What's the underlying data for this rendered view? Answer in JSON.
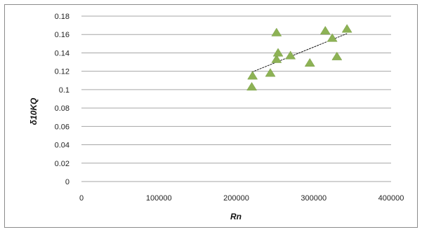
{
  "chart_data": {
    "type": "scatter",
    "title": "",
    "xlabel": "Rn",
    "ylabel": "δ10KQ",
    "xlim": [
      0,
      400000
    ],
    "ylim": [
      0,
      0.18
    ],
    "x_ticks": [
      0,
      100000,
      200000,
      300000,
      400000
    ],
    "y_ticks": [
      0,
      0.02,
      0.04,
      0.06,
      0.08,
      0.1,
      0.12,
      0.14,
      0.16,
      0.18
    ],
    "x_tick_labels": [
      "0",
      "100000",
      "200000",
      "300000",
      "400000"
    ],
    "y_tick_labels": [
      "0",
      "0.02",
      "0.04",
      "0.06",
      "0.08",
      "0.1",
      "0.12",
      "0.14",
      "0.16",
      "0.18"
    ],
    "grid": "horizontal",
    "legend": "none",
    "series": [
      {
        "marker": "triangle",
        "color": "#8db255",
        "points": [
          {
            "x": 220000,
            "y": 0.103
          },
          {
            "x": 221000,
            "y": 0.115
          },
          {
            "x": 244000,
            "y": 0.118
          },
          {
            "x": 252000,
            "y": 0.162
          },
          {
            "x": 252000,
            "y": 0.133
          },
          {
            "x": 254000,
            "y": 0.14
          },
          {
            "x": 270000,
            "y": 0.137
          },
          {
            "x": 295000,
            "y": 0.129
          },
          {
            "x": 315000,
            "y": 0.164
          },
          {
            "x": 324000,
            "y": 0.156
          },
          {
            "x": 330000,
            "y": 0.136
          },
          {
            "x": 343000,
            "y": 0.166
          }
        ]
      }
    ],
    "trendline": {
      "type": "linear",
      "color": "#1a1a1a",
      "x": [
        220000,
        343000
      ],
      "y": [
        0.119,
        0.161
      ]
    },
    "gridline_color": "#a6a6a6"
  }
}
